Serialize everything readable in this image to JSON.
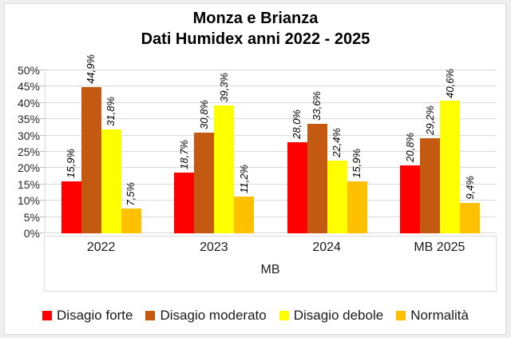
{
  "title": {
    "line1": "Monza e Brianza",
    "line2": "Dati Humidex anni 2022 - 2025"
  },
  "chart_data": {
    "type": "bar",
    "title": "Monza e Brianza - Dati Humidex anni 2022 - 2025",
    "categories": [
      "2022",
      "2023",
      "2024",
      "MB 2025"
    ],
    "series": [
      {
        "name": "Disagio forte",
        "color": "#fe0000",
        "values": [
          15.9,
          18.7,
          28.0,
          20.8
        ],
        "labels": [
          "15,9%",
          "18,7%",
          "28,0%",
          "20,8%"
        ]
      },
      {
        "name": "Disagio moderato",
        "color": "#c45911",
        "values": [
          44.9,
          30.8,
          33.6,
          29.2
        ],
        "labels": [
          "44,9%",
          "30,8%",
          "33,6%",
          "29,2%"
        ]
      },
      {
        "name": "Disagio debole",
        "color": "#ffff00",
        "values": [
          31.8,
          39.3,
          22.4,
          40.6
        ],
        "labels": [
          "31,8%",
          "39,3%",
          "22,4%",
          "40,6%"
        ]
      },
      {
        "name": "Normalità",
        "color": "#ffc000",
        "values": [
          7.5,
          11.2,
          15.9,
          9.4
        ],
        "labels": [
          "7,5%",
          "11,2%",
          "15,9%",
          "9,4%"
        ]
      }
    ],
    "xlabel": "MB",
    "ylabel": "",
    "ylim": [
      0,
      50
    ],
    "yticks": [
      "0%",
      "5%",
      "10%",
      "15%",
      "20%",
      "25%",
      "30%",
      "35%",
      "40%",
      "45%",
      "50%"
    ],
    "grid": true,
    "legend_position": "bottom",
    "data_label_style": "rotated-90-italic"
  }
}
